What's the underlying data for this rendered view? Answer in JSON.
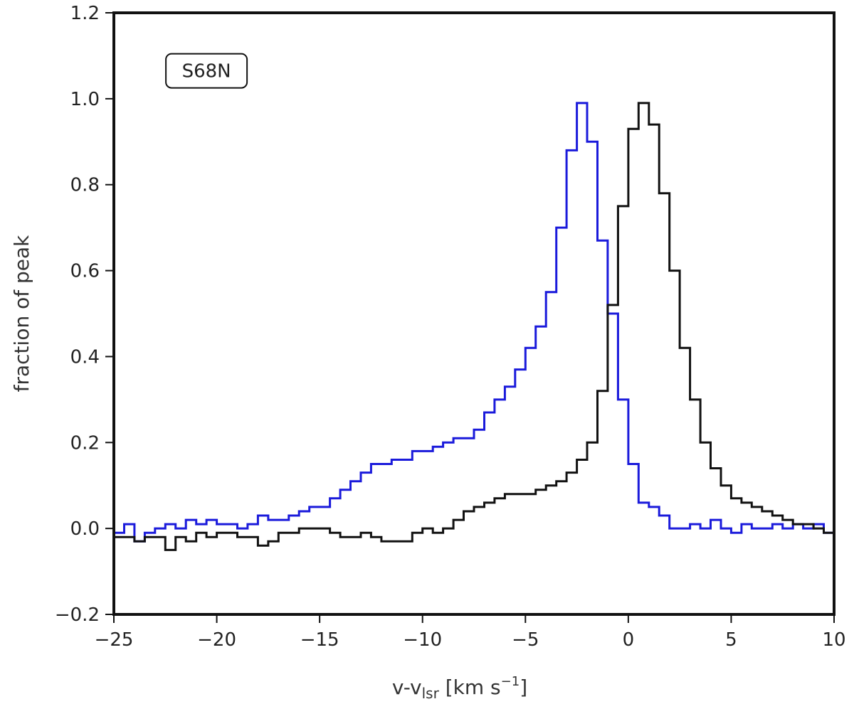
{
  "chart_data": {
    "type": "line",
    "title": "",
    "xlabel": {
      "prefix": "v-v",
      "sub": "lsr",
      "unit_pre": " [km s",
      "sup": "−1",
      "unit_post": "]"
    },
    "ylabel": "fraction of peak",
    "xlim": [
      -25,
      10
    ],
    "ylim": [
      -0.2,
      1.2
    ],
    "x_ticks": [
      -25,
      -20,
      -15,
      -10,
      -5,
      0,
      5,
      10
    ],
    "x_tick_labels": [
      "−25",
      "−20",
      "−15",
      "−10",
      "−5",
      "0",
      "5",
      "10"
    ],
    "y_ticks": [
      -0.2,
      0.0,
      0.2,
      0.4,
      0.6,
      0.8,
      1.0,
      1.2
    ],
    "y_tick_labels": [
      "−0.2",
      "0.0",
      "0.2",
      "0.4",
      "0.6",
      "0.8",
      "1.0",
      "1.2"
    ],
    "grid": false,
    "annotation": {
      "text": "S68N",
      "x": -20.5,
      "y": 1.065
    },
    "series": [
      {
        "color": "#1a1adb",
        "step": true,
        "x": [
          -25,
          -24.5,
          -24,
          -23.5,
          -23,
          -22.5,
          -22,
          -21.5,
          -21,
          -20.5,
          -20,
          -19.5,
          -19,
          -18.5,
          -18,
          -17.5,
          -17,
          -16.5,
          -16,
          -15.5,
          -15,
          -14.5,
          -14,
          -13.5,
          -13,
          -12.5,
          -12,
          -11.5,
          -11,
          -10.5,
          -10,
          -9.5,
          -9,
          -8.5,
          -8,
          -7.5,
          -7,
          -6.5,
          -6,
          -5.5,
          -5,
          -4.5,
          -4,
          -3.5,
          -3,
          -2.5,
          -2,
          -1.5,
          -1,
          -0.5,
          0,
          0.5,
          1,
          1.5,
          2,
          2.5,
          3,
          3.5,
          4,
          4.5,
          5,
          5.5,
          6,
          6.5,
          7,
          7.5,
          8,
          8.5,
          9,
          9.5,
          10
        ],
        "y": [
          -0.01,
          0.01,
          -0.03,
          -0.01,
          0.0,
          0.01,
          0.0,
          0.02,
          0.01,
          0.02,
          0.01,
          0.01,
          0.0,
          0.01,
          0.03,
          0.02,
          0.02,
          0.03,
          0.04,
          0.05,
          0.05,
          0.07,
          0.09,
          0.11,
          0.13,
          0.15,
          0.15,
          0.16,
          0.16,
          0.18,
          0.18,
          0.19,
          0.2,
          0.21,
          0.21,
          0.23,
          0.27,
          0.3,
          0.33,
          0.37,
          0.42,
          0.47,
          0.55,
          0.7,
          0.88,
          0.99,
          0.9,
          0.67,
          0.5,
          0.3,
          0.15,
          0.06,
          0.05,
          0.03,
          0.0,
          0.0,
          0.01,
          0.0,
          0.02,
          0.0,
          -0.01,
          0.01,
          0.0,
          0.0,
          0.01,
          0.0,
          0.01,
          0.0,
          0.01,
          -0.01,
          0.0
        ]
      },
      {
        "color": "#111111",
        "step": true,
        "x": [
          -25,
          -24.5,
          -24,
          -23.5,
          -23,
          -22.5,
          -22,
          -21.5,
          -21,
          -20.5,
          -20,
          -19.5,
          -19,
          -18.5,
          -18,
          -17.5,
          -17,
          -16.5,
          -16,
          -15.5,
          -15,
          -14.5,
          -14,
          -13.5,
          -13,
          -12.5,
          -12,
          -11.5,
          -11,
          -10.5,
          -10,
          -9.5,
          -9,
          -8.5,
          -8,
          -7.5,
          -7,
          -6.5,
          -6,
          -5.5,
          -5,
          -4.5,
          -4,
          -3.5,
          -3,
          -2.5,
          -2,
          -1.5,
          -1,
          -0.5,
          0,
          0.5,
          1,
          1.5,
          2,
          2.5,
          3,
          3.5,
          4,
          4.5,
          5,
          5.5,
          6,
          6.5,
          7,
          7.5,
          8,
          8.5,
          9,
          9.5,
          10
        ],
        "y": [
          -0.02,
          -0.02,
          -0.03,
          -0.02,
          -0.02,
          -0.05,
          -0.02,
          -0.03,
          -0.01,
          -0.02,
          -0.01,
          -0.01,
          -0.02,
          -0.02,
          -0.04,
          -0.03,
          -0.01,
          -0.01,
          0.0,
          0.0,
          0.0,
          -0.01,
          -0.02,
          -0.02,
          -0.01,
          -0.02,
          -0.03,
          -0.03,
          -0.03,
          -0.01,
          0.0,
          -0.01,
          0.0,
          0.02,
          0.04,
          0.05,
          0.06,
          0.07,
          0.08,
          0.08,
          0.08,
          0.09,
          0.1,
          0.11,
          0.13,
          0.16,
          0.2,
          0.32,
          0.52,
          0.75,
          0.93,
          0.99,
          0.94,
          0.78,
          0.6,
          0.42,
          0.3,
          0.2,
          0.14,
          0.1,
          0.07,
          0.06,
          0.05,
          0.04,
          0.03,
          0.02,
          0.01,
          0.01,
          0.0,
          -0.01,
          -0.03
        ]
      }
    ]
  }
}
